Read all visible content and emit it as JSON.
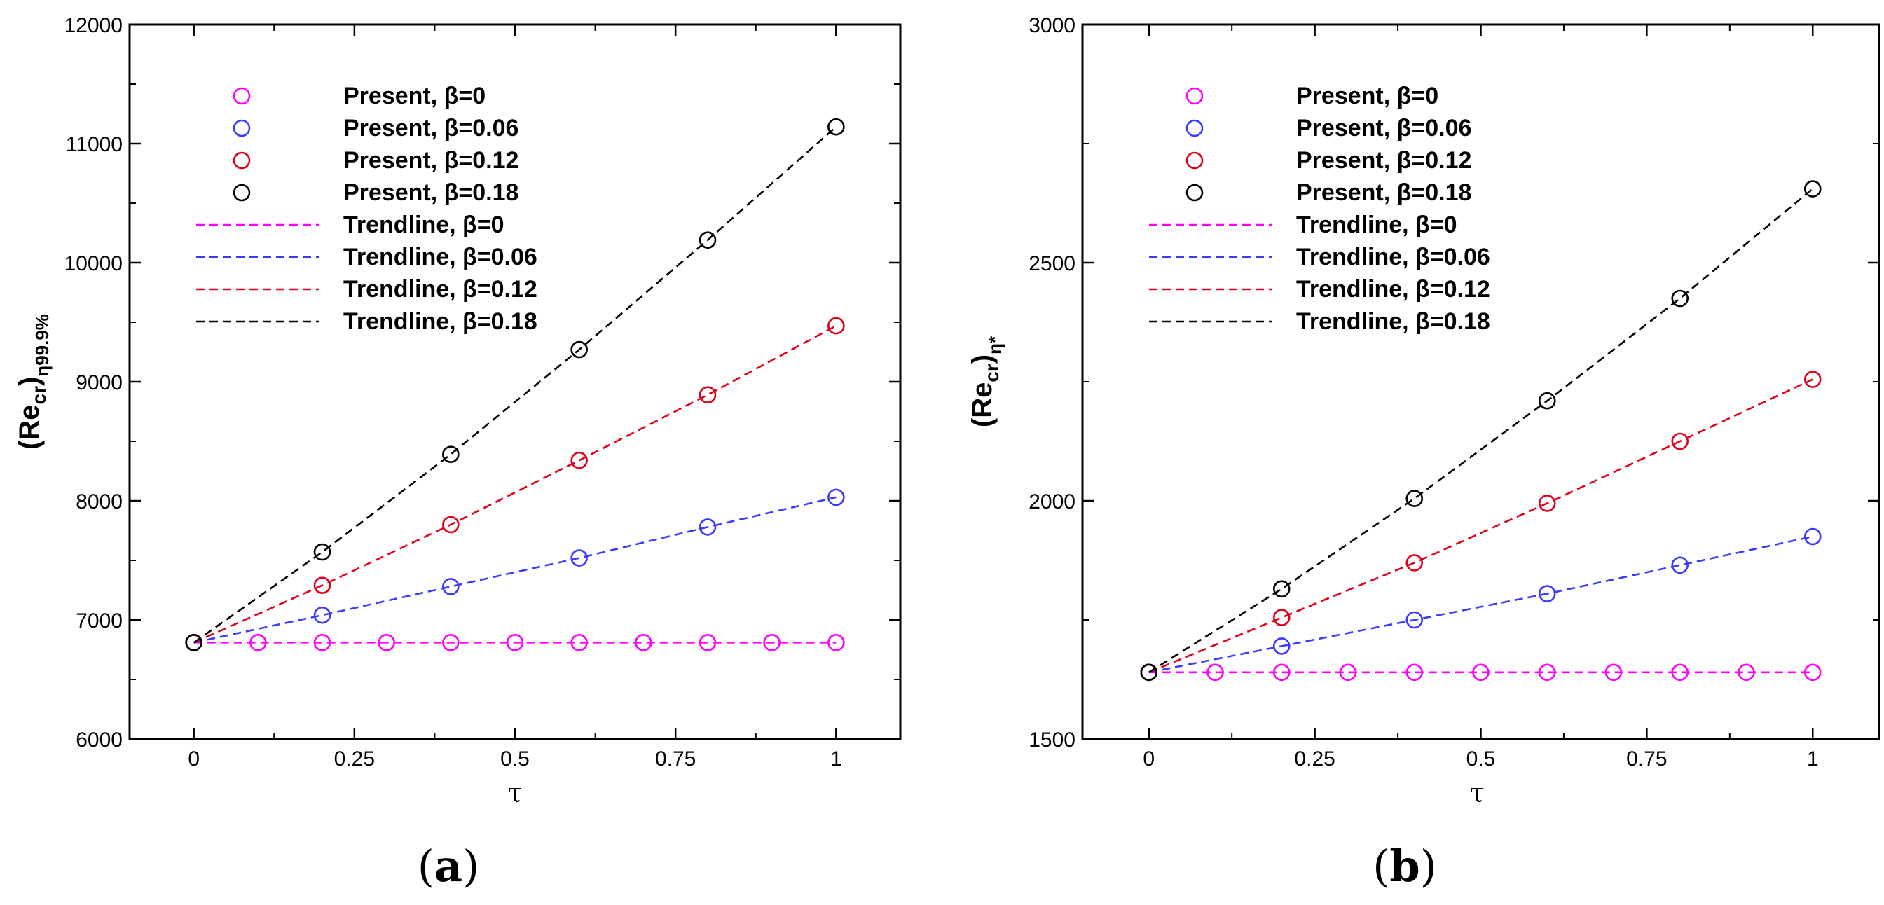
{
  "chart_data": [
    {
      "type": "scatter",
      "caption_open": "(",
      "caption_letter": "a",
      "caption_close": ")",
      "xlabel": "τ",
      "ylabel_main": "(Re",
      "ylabel_sub1": "cr",
      "ylabel_close": ")",
      "ylabel_sub2": "η99.9%",
      "xlim": [
        -0.1,
        1.1
      ],
      "ylim": [
        6000,
        12000
      ],
      "xticks": [
        0,
        0.25,
        0.5,
        0.75,
        1
      ],
      "xtick_labels": [
        "0",
        "0.25",
        "0.5",
        "0.75",
        "1"
      ],
      "yticks": [
        6000,
        7000,
        8000,
        9000,
        10000,
        11000,
        12000
      ],
      "ytick_labels": [
        "6000",
        "7000",
        "8000",
        "9000",
        "10000",
        "11000",
        "12000"
      ],
      "legend_position": "top-left",
      "series": [
        {
          "name": "Present, β=0",
          "kind": "markers",
          "color": "#ff00ff",
          "x": [
            0,
            0.1,
            0.2,
            0.3,
            0.4,
            0.5,
            0.6,
            0.7,
            0.8,
            0.9,
            1.0
          ],
          "y": [
            6810,
            6810,
            6810,
            6810,
            6810,
            6810,
            6810,
            6810,
            6810,
            6810,
            6810
          ]
        },
        {
          "name": "Present, β=0.06",
          "kind": "markers",
          "color": "#3a3aff",
          "x": [
            0,
            0.2,
            0.4,
            0.6,
            0.8,
            1.0
          ],
          "y": [
            6810,
            7040,
            7280,
            7520,
            7780,
            8030
          ]
        },
        {
          "name": "Present, β=0.12",
          "kind": "markers",
          "color": "#e0001a",
          "x": [
            0,
            0.2,
            0.4,
            0.6,
            0.8,
            1.0
          ],
          "y": [
            6810,
            7290,
            7800,
            8340,
            8890,
            9470
          ]
        },
        {
          "name": "Present, β=0.18",
          "kind": "markers",
          "color": "#000000",
          "x": [
            0,
            0.2,
            0.4,
            0.6,
            0.8,
            1.0
          ],
          "y": [
            6810,
            7570,
            8390,
            9270,
            10190,
            11140
          ]
        },
        {
          "name": "Trendline, β=0",
          "kind": "line",
          "color": "#ff00ff",
          "x": [
            0,
            0.2,
            0.4,
            0.6,
            0.8,
            1.0
          ],
          "y": [
            6810,
            6810,
            6810,
            6810,
            6810,
            6810
          ]
        },
        {
          "name": "Trendline, β=0.06",
          "kind": "line",
          "color": "#3a3aff",
          "x": [
            0,
            0.2,
            0.4,
            0.6,
            0.8,
            1.0
          ],
          "y": [
            6810,
            7040,
            7280,
            7520,
            7780,
            8030
          ]
        },
        {
          "name": "Trendline, β=0.12",
          "kind": "line",
          "color": "#e0001a",
          "x": [
            0,
            0.2,
            0.4,
            0.6,
            0.8,
            1.0
          ],
          "y": [
            6810,
            7290,
            7800,
            8340,
            8890,
            9470
          ]
        },
        {
          "name": "Trendline, β=0.18",
          "kind": "line",
          "color": "#000000",
          "x": [
            0,
            0.2,
            0.4,
            0.6,
            0.8,
            1.0
          ],
          "y": [
            6810,
            7570,
            8390,
            9270,
            10190,
            11140
          ]
        }
      ]
    },
    {
      "type": "scatter",
      "caption_open": "(",
      "caption_letter": "b",
      "caption_close": ")",
      "xlabel": "τ",
      "ylabel_main": "(Re",
      "ylabel_sub1": "cr",
      "ylabel_close": ")",
      "ylabel_sub2": "η*",
      "xlim": [
        -0.1,
        1.1
      ],
      "ylim": [
        1500,
        3000
      ],
      "xticks": [
        0,
        0.25,
        0.5,
        0.75,
        1
      ],
      "xtick_labels": [
        "0",
        "0.25",
        "0.5",
        "0.75",
        "1"
      ],
      "yticks": [
        1500,
        2000,
        2500,
        3000
      ],
      "ytick_labels": [
        "1500",
        "2000",
        "2500",
        "3000"
      ],
      "legend_position": "top-left",
      "series": [
        {
          "name": "Present, β=0",
          "kind": "markers",
          "color": "#ff00ff",
          "x": [
            0,
            0.1,
            0.2,
            0.3,
            0.4,
            0.5,
            0.6,
            0.7,
            0.8,
            0.9,
            1.0
          ],
          "y": [
            1640,
            1640,
            1640,
            1640,
            1640,
            1640,
            1640,
            1640,
            1640,
            1640,
            1640
          ]
        },
        {
          "name": "Present, β=0.06",
          "kind": "markers",
          "color": "#3a3aff",
          "x": [
            0,
            0.2,
            0.4,
            0.6,
            0.8,
            1.0
          ],
          "y": [
            1640,
            1695,
            1750,
            1805,
            1865,
            1925
          ]
        },
        {
          "name": "Present, β=0.12",
          "kind": "markers",
          "color": "#e0001a",
          "x": [
            0,
            0.2,
            0.4,
            0.6,
            0.8,
            1.0
          ],
          "y": [
            1640,
            1755,
            1870,
            1995,
            2125,
            2255
          ]
        },
        {
          "name": "Present, β=0.18",
          "kind": "markers",
          "color": "#000000",
          "x": [
            0,
            0.2,
            0.4,
            0.6,
            0.8,
            1.0
          ],
          "y": [
            1640,
            1815,
            2005,
            2210,
            2425,
            2655
          ]
        },
        {
          "name": "Trendline, β=0",
          "kind": "line",
          "color": "#ff00ff",
          "x": [
            0,
            0.2,
            0.4,
            0.6,
            0.8,
            1.0
          ],
          "y": [
            1640,
            1640,
            1640,
            1640,
            1640,
            1640
          ]
        },
        {
          "name": "Trendline, β=0.06",
          "kind": "line",
          "color": "#3a3aff",
          "x": [
            0,
            0.2,
            0.4,
            0.6,
            0.8,
            1.0
          ],
          "y": [
            1640,
            1695,
            1750,
            1805,
            1865,
            1925
          ]
        },
        {
          "name": "Trendline, β=0.12",
          "kind": "line",
          "color": "#e0001a",
          "x": [
            0,
            0.2,
            0.4,
            0.6,
            0.8,
            1.0
          ],
          "y": [
            1640,
            1755,
            1870,
            1995,
            2125,
            2255
          ]
        },
        {
          "name": "Trendline, β=0.18",
          "kind": "line",
          "color": "#000000",
          "x": [
            0,
            0.2,
            0.4,
            0.6,
            0.8,
            1.0
          ],
          "y": [
            1640,
            1815,
            2005,
            2210,
            2425,
            2655
          ]
        }
      ]
    }
  ]
}
